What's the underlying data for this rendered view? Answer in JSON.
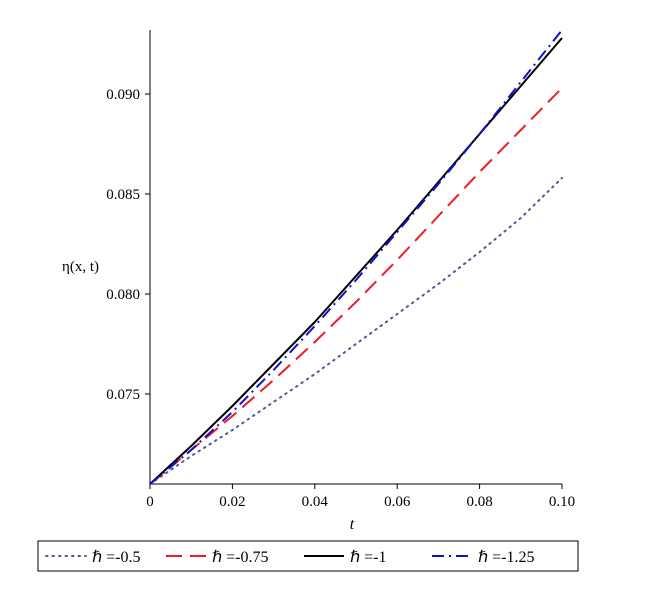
{
  "chart_data": {
    "type": "line",
    "title": "",
    "xlabel": "t",
    "ylabel": "η(x, t)",
    "xlim": [
      0,
      0.1
    ],
    "ylim": [
      0.0705,
      0.0932
    ],
    "xticks": [
      0,
      0.02,
      0.04,
      0.06,
      0.08,
      0.1
    ],
    "xtick_labels": [
      "0",
      "0.02",
      "0.04",
      "0.06",
      "0.08",
      "0.10"
    ],
    "yticks": [
      0.075,
      0.08,
      0.085,
      0.09
    ],
    "ytick_labels": [
      "0.075",
      "0.080",
      "0.085",
      "0.090"
    ],
    "grid": false,
    "legend_position": "bottom",
    "x": [
      0,
      0.01,
      0.02,
      0.03,
      0.04,
      0.05,
      0.06,
      0.07,
      0.08,
      0.09,
      0.1
    ],
    "series": [
      {
        "name": "ℏ =-0.5",
        "color": "#4a5a9a",
        "dash": "dotted",
        "values": [
          0.0705,
          0.0719,
          0.0732,
          0.0746,
          0.076,
          0.0775,
          0.079,
          0.0805,
          0.0821,
          0.0838,
          0.0858
        ]
      },
      {
        "name": "ℏ =-0.75",
        "color": "#ee1c25",
        "dash": "long-dash",
        "values": [
          0.0705,
          0.0722,
          0.0739,
          0.0757,
          0.0776,
          0.0796,
          0.0817,
          0.0839,
          0.0861,
          0.0882,
          0.0903
        ]
      },
      {
        "name": "ℏ =-1",
        "color": "#000000",
        "dash": "solid",
        "values": [
          0.0705,
          0.0724,
          0.0744,
          0.0765,
          0.0786,
          0.0809,
          0.0832,
          0.0856,
          0.088,
          0.0904,
          0.0928
        ]
      },
      {
        "name": "ℏ =-1.25",
        "color": "#1010d0",
        "dash": "dash-dot",
        "values": [
          0.0705,
          0.0722,
          0.0741,
          0.0762,
          0.0784,
          0.0807,
          0.0831,
          0.0855,
          0.088,
          0.0906,
          0.0932
        ]
      }
    ]
  }
}
